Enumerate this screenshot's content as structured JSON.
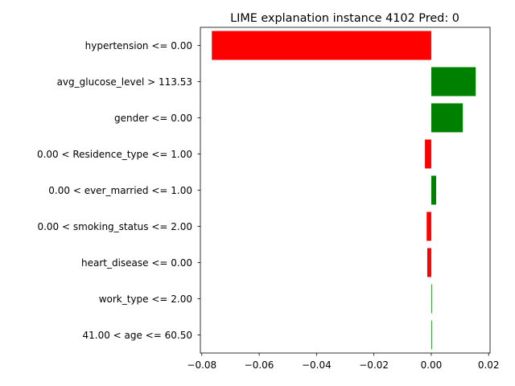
{
  "chart_data": {
    "type": "bar",
    "orientation": "horizontal",
    "title": "LIME explanation instance 4102 Pred: 0",
    "xlabel": "",
    "ylabel": "",
    "xlim": [
      -0.0805,
      0.0205
    ],
    "xticks": [
      -0.08,
      -0.06,
      -0.04,
      -0.02,
      0.0,
      0.02
    ],
    "xtick_labels": [
      "−0.08",
      "−0.06",
      "−0.04",
      "−0.02",
      "0.00",
      "0.02"
    ],
    "grid": false,
    "categories": [
      "hypertension <= 0.00",
      "avg_glucose_level > 113.53",
      "gender <= 0.00",
      "0.00 < Residence_type <= 1.00",
      "0.00 < ever_married <= 1.00",
      "0.00 < smoking_status <= 2.00",
      "heart_disease <= 0.00",
      "work_type <= 2.00",
      "41.00 < age <= 60.50"
    ],
    "values": [
      -0.0765,
      0.0155,
      0.011,
      -0.0022,
      0.0017,
      -0.0016,
      -0.0014,
      0.0002,
      0.0001
    ],
    "colors": {
      "positive": "#008000",
      "negative": "#ff0000"
    }
  }
}
